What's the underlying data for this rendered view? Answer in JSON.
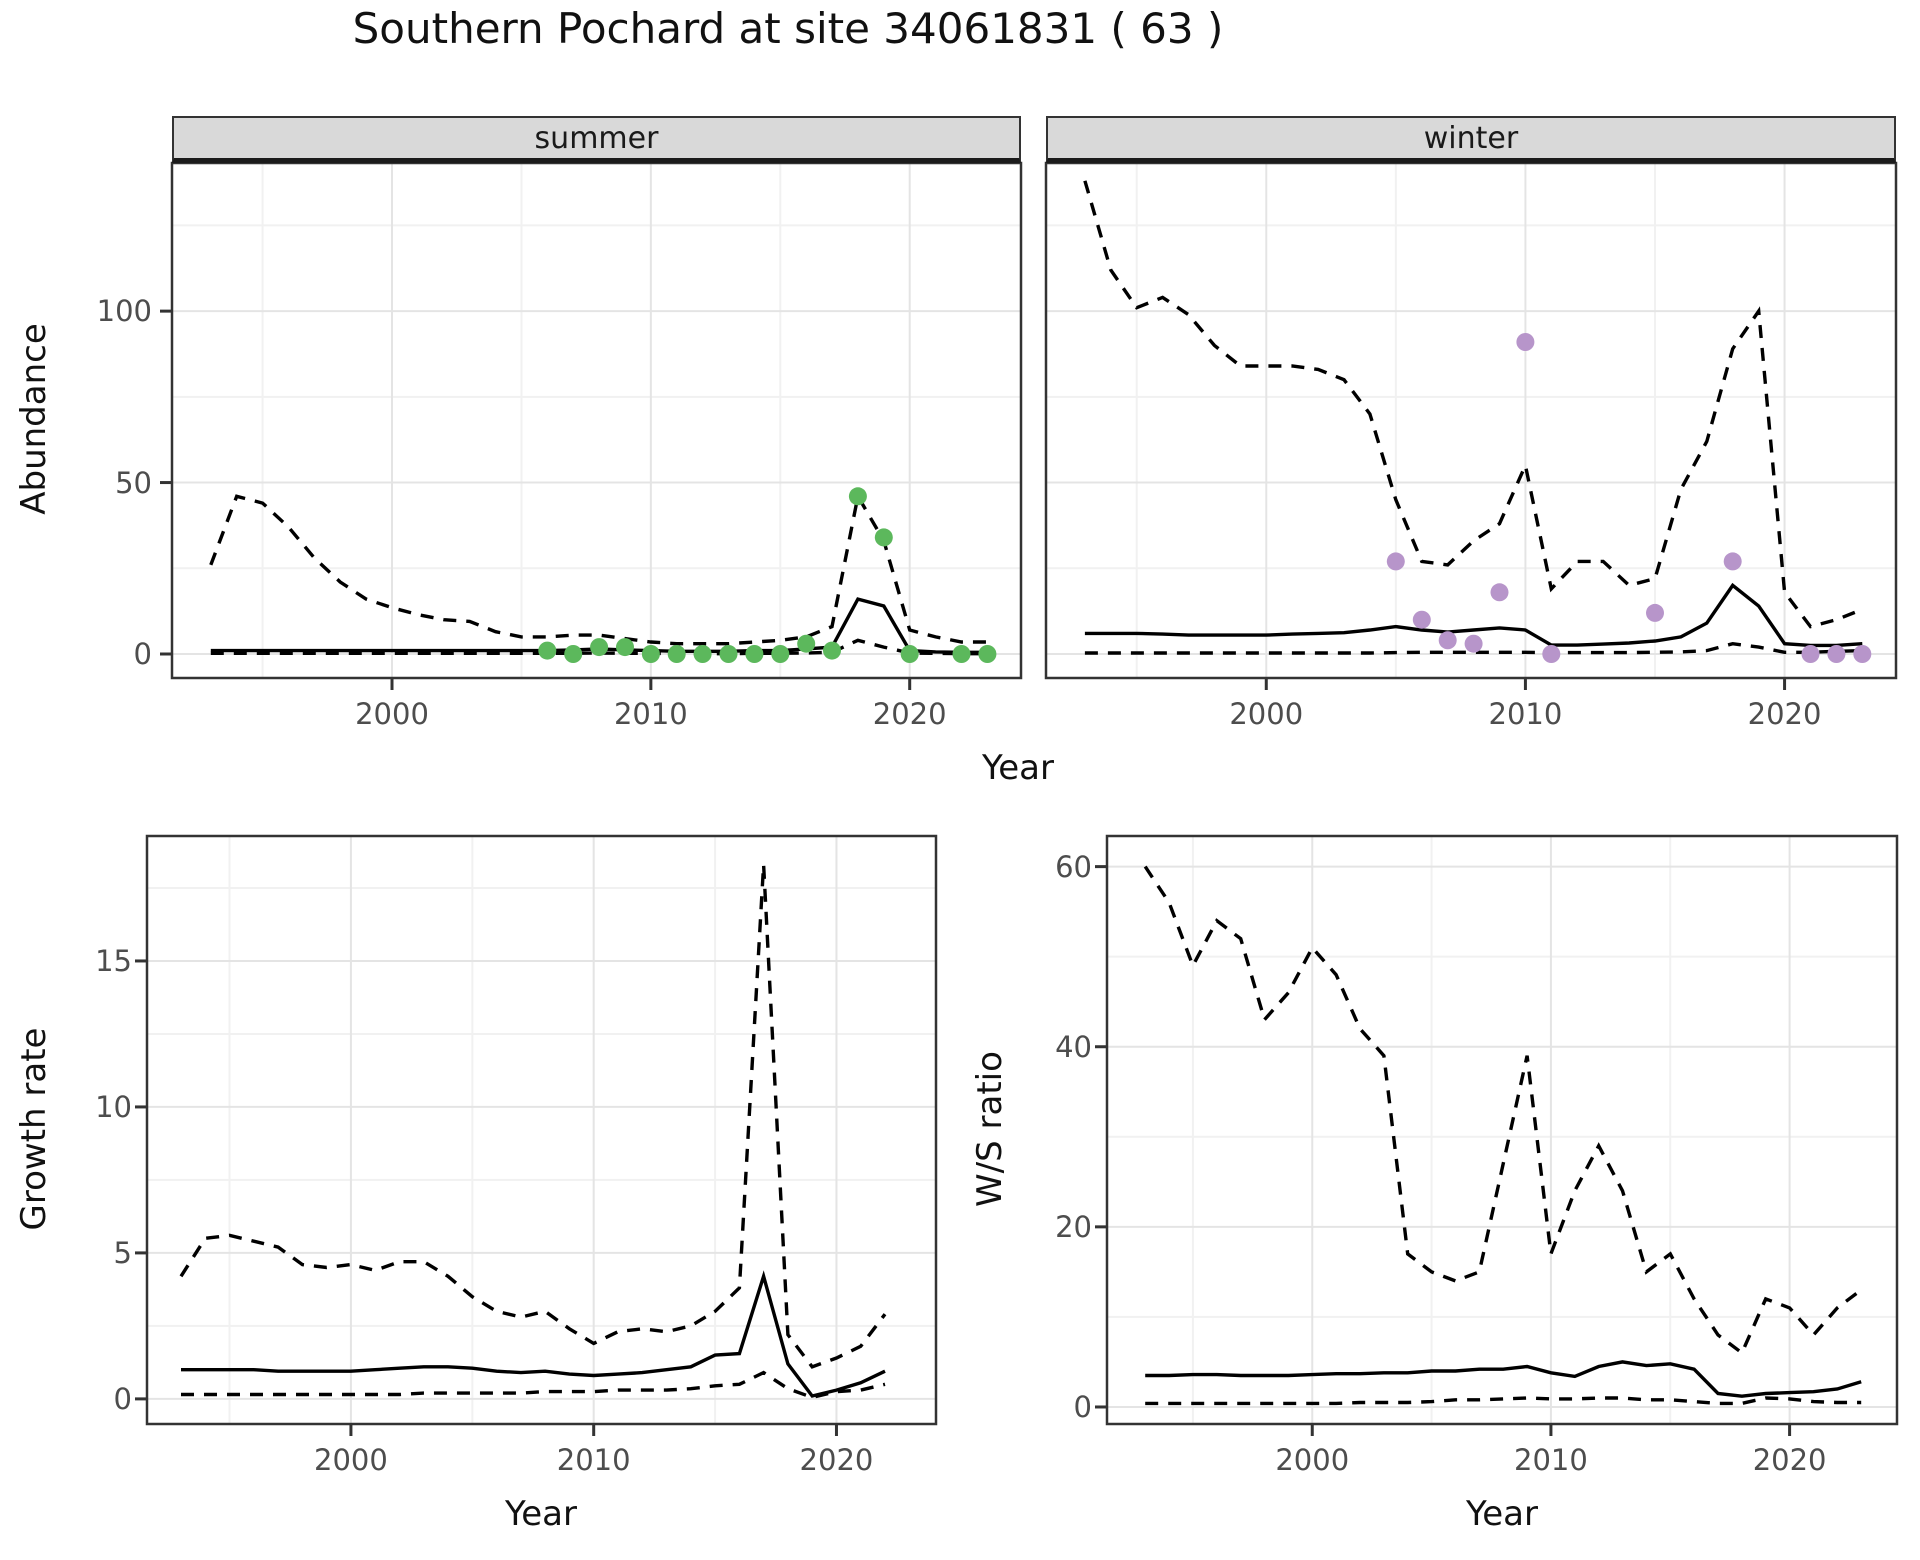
{
  "title": "Southern Pochard at site 34061831 ( 63 )",
  "facets": {
    "summer": "summer",
    "winter": "winter"
  },
  "axes": {
    "abundance_title": "Abundance",
    "year_top_title": "Year",
    "growth_title": "Growth rate",
    "ws_title": "W/S ratio",
    "year_bottom_left_title": "Year",
    "year_bottom_right_title": "Year"
  },
  "colors": {
    "summer_obs": "#5cb85c",
    "winter_obs": "#b795ca",
    "line": "#000000",
    "grid_major": "#e4e4e4",
    "grid_minor": "#f1f1f1",
    "panel_border": "#333333",
    "tick_mark": "#333333",
    "tick_text": "#4d4d4d",
    "strip_bg": "#d9d9d9"
  },
  "chart_data": [
    {
      "id": "summer-abundance",
      "type": "line",
      "facet": "summer",
      "title": "summer",
      "xlabel": "Year",
      "ylabel": "Abundance",
      "xlim": [
        1991.5,
        2024.3
      ],
      "ylim": [
        -7,
        143.2
      ],
      "x_ticks": [
        2000,
        2010,
        2020
      ],
      "x_tick_labels": [
        "2000",
        "2010",
        "2020"
      ],
      "x_minor": [
        1995,
        2005,
        2015
      ],
      "y_ticks": [
        0,
        50,
        100
      ],
      "y_tick_labels": [
        "0",
        "50",
        "100"
      ],
      "y_minor": [
        25,
        75,
        125
      ],
      "x": [
        1993,
        1994,
        1995,
        1996,
        1997,
        1998,
        1999,
        2000,
        2001,
        2002,
        2003,
        2004,
        2005,
        2006,
        2007,
        2008,
        2009,
        2010,
        2011,
        2012,
        2013,
        2014,
        2015,
        2016,
        2017,
        2018,
        2019,
        2020,
        2021,
        2022,
        2023
      ],
      "series": [
        {
          "name": "upper_ci",
          "style": "dashed",
          "values": [
            26,
            46,
            44,
            37,
            28,
            21,
            16,
            13.5,
            11.5,
            10,
            9.5,
            6.5,
            5,
            5,
            5.5,
            5.5,
            4.5,
            3.5,
            3,
            3,
            3,
            3.5,
            4,
            5,
            8,
            46,
            33,
            7,
            5,
            3.5,
            3.5
          ]
        },
        {
          "name": "mean",
          "style": "solid",
          "values": [
            1,
            1,
            1,
            1,
            1,
            1,
            1,
            1,
            1,
            1,
            1,
            1,
            1,
            1,
            1.2,
            1.5,
            1.2,
            1,
            0.8,
            0.8,
            0.8,
            1,
            1,
            1.5,
            2,
            16,
            14,
            1,
            0.6,
            0.5,
            0.5
          ]
        },
        {
          "name": "lower_ci",
          "style": "dashed",
          "values": [
            0.2,
            0.2,
            0.2,
            0.2,
            0.2,
            0.2,
            0.2,
            0.2,
            0.2,
            0.2,
            0.2,
            0.2,
            0.2,
            0.2,
            0.2,
            0.3,
            0.2,
            0.2,
            0.1,
            0.1,
            0.1,
            0.2,
            0.2,
            0.3,
            0.5,
            4,
            2,
            0.3,
            0.2,
            0.1,
            0.1
          ]
        }
      ],
      "points": {
        "name": "observed-summer",
        "color_key": "summer_obs",
        "data": [
          [
            2006,
            1
          ],
          [
            2007,
            0
          ],
          [
            2008,
            2
          ],
          [
            2009,
            2
          ],
          [
            2010,
            0
          ],
          [
            2011,
            0
          ],
          [
            2012,
            0
          ],
          [
            2013,
            0
          ],
          [
            2014,
            0
          ],
          [
            2015,
            0
          ],
          [
            2016,
            3
          ],
          [
            2017,
            1
          ],
          [
            2018,
            46
          ],
          [
            2019,
            34
          ],
          [
            2020,
            0
          ],
          [
            2022,
            0
          ],
          [
            2023,
            0
          ]
        ]
      }
    },
    {
      "id": "winter-abundance",
      "type": "line",
      "facet": "winter",
      "title": "winter",
      "xlabel": "Year",
      "ylabel": "Abundance",
      "xlim": [
        1991.5,
        2024.3
      ],
      "ylim": [
        -7,
        143.2
      ],
      "x_ticks": [
        2000,
        2010,
        2020
      ],
      "x_tick_labels": [
        "2000",
        "2010",
        "2020"
      ],
      "x_minor": [
        1995,
        2005,
        2015
      ],
      "y_ticks": [
        0,
        50,
        100
      ],
      "y_tick_labels": [],
      "y_minor": [
        25,
        75,
        125
      ],
      "x": [
        1993,
        1994,
        1995,
        1996,
        1997,
        1998,
        1999,
        2000,
        2001,
        2002,
        2003,
        2004,
        2005,
        2006,
        2007,
        2008,
        2009,
        2010,
        2011,
        2012,
        2013,
        2014,
        2015,
        2016,
        2017,
        2018,
        2019,
        2020,
        2021,
        2022,
        2023
      ],
      "series": [
        {
          "name": "upper_ci",
          "style": "dashed",
          "values": [
            138,
            112,
            101,
            104,
            99,
            90,
            84,
            84,
            84,
            83,
            80,
            70,
            45,
            27,
            26,
            33,
            38,
            55,
            19,
            27,
            27,
            20,
            22,
            48,
            62,
            89,
            100,
            18,
            8,
            10,
            13
          ]
        },
        {
          "name": "mean",
          "style": "solid",
          "values": [
            6,
            6,
            6,
            5.8,
            5.5,
            5.5,
            5.5,
            5.5,
            5.8,
            6,
            6.2,
            7,
            8,
            7,
            6.4,
            7,
            7.6,
            7,
            2.6,
            2.6,
            2.9,
            3.2,
            3.8,
            5,
            9,
            20,
            14,
            3,
            2.5,
            2.5,
            3
          ]
        },
        {
          "name": "lower_ci",
          "style": "dashed",
          "values": [
            0.3,
            0.3,
            0.3,
            0.3,
            0.3,
            0.3,
            0.3,
            0.3,
            0.3,
            0.3,
            0.3,
            0.3,
            0.4,
            0.5,
            0.5,
            0.5,
            0.5,
            0.5,
            0.4,
            0.4,
            0.4,
            0.4,
            0.5,
            0.6,
            1,
            3,
            2,
            0.5,
            0.5,
            0.8,
            1
          ]
        }
      ],
      "points": {
        "name": "observed-winter",
        "color_key": "winter_obs",
        "data": [
          [
            2005,
            27
          ],
          [
            2006,
            10
          ],
          [
            2007,
            4
          ],
          [
            2008,
            3
          ],
          [
            2009,
            18
          ],
          [
            2010,
            91
          ],
          [
            2011,
            0
          ],
          [
            2015,
            12
          ],
          [
            2018,
            27
          ],
          [
            2021,
            0
          ],
          [
            2022,
            0
          ],
          [
            2023,
            0
          ]
        ]
      }
    },
    {
      "id": "growth-rate",
      "type": "line",
      "facet": null,
      "title": "Growth rate",
      "xlabel": "Year",
      "ylabel": "Growth rate",
      "xlim": [
        1991.6,
        2024.1
      ],
      "ylim": [
        -0.86,
        19.28
      ],
      "x_ticks": [
        2000,
        2010,
        2020
      ],
      "x_tick_labels": [
        "2000",
        "2010",
        "2020"
      ],
      "x_minor": [
        1995,
        2005,
        2015
      ],
      "y_ticks": [
        0,
        5,
        10,
        15
      ],
      "y_tick_labels": [
        "0",
        "5",
        "10",
        "15"
      ],
      "y_minor": [
        2.5,
        7.5,
        12.5,
        17.5
      ],
      "x": [
        1993,
        1994,
        1995,
        1996,
        1997,
        1998,
        1999,
        2000,
        2001,
        2002,
        2003,
        2004,
        2005,
        2006,
        2007,
        2008,
        2009,
        2010,
        2011,
        2012,
        2013,
        2014,
        2015,
        2016,
        2017,
        2018,
        2019,
        2020,
        2021,
        2022
      ],
      "series": [
        {
          "name": "upper_ci",
          "style": "dashed",
          "values": [
            4.2,
            5.5,
            5.6,
            5.4,
            5.2,
            4.6,
            4.5,
            4.6,
            4.4,
            4.7,
            4.7,
            4.2,
            3.5,
            3.0,
            2.8,
            3.0,
            2.4,
            1.9,
            2.3,
            2.4,
            2.3,
            2.5,
            3.0,
            3.8,
            18.3,
            2.2,
            1.1,
            1.4,
            1.8,
            2.9
          ]
        },
        {
          "name": "mean",
          "style": "solid",
          "values": [
            1.0,
            1.0,
            1.0,
            1.0,
            0.95,
            0.95,
            0.95,
            0.95,
            1.0,
            1.05,
            1.1,
            1.1,
            1.05,
            0.95,
            0.9,
            0.95,
            0.85,
            0.8,
            0.85,
            0.9,
            1.0,
            1.1,
            1.5,
            1.55,
            4.2,
            1.2,
            0.1,
            0.3,
            0.55,
            0.95
          ]
        },
        {
          "name": "lower_ci",
          "style": "dashed",
          "values": [
            0.15,
            0.15,
            0.15,
            0.15,
            0.15,
            0.15,
            0.15,
            0.15,
            0.15,
            0.15,
            0.2,
            0.2,
            0.2,
            0.2,
            0.2,
            0.25,
            0.25,
            0.25,
            0.3,
            0.3,
            0.3,
            0.35,
            0.45,
            0.5,
            0.9,
            0.35,
            0.05,
            0.25,
            0.3,
            0.5
          ]
        }
      ],
      "points": null
    },
    {
      "id": "ws-ratio",
      "type": "line",
      "facet": null,
      "title": "W/S ratio",
      "xlabel": "Year",
      "ylabel": "W/S ratio",
      "xlim": [
        1991.4,
        2024.5
      ],
      "ylim": [
        -1.89,
        63.4
      ],
      "x_ticks": [
        2000,
        2010,
        2020
      ],
      "x_tick_labels": [
        "2000",
        "2010",
        "2020"
      ],
      "x_minor": [
        1995,
        2005,
        2015
      ],
      "y_ticks": [
        0,
        20,
        40,
        60
      ],
      "y_tick_labels": [
        "0",
        "20",
        "40",
        "60"
      ],
      "y_minor": [
        10,
        30,
        50
      ],
      "x": [
        1993,
        1994,
        1995,
        1996,
        1997,
        1998,
        1999,
        2000,
        2001,
        2002,
        2003,
        2004,
        2005,
        2006,
        2007,
        2008,
        2009,
        2010,
        2011,
        2012,
        2013,
        2014,
        2015,
        2016,
        2017,
        2018,
        2019,
        2020,
        2021,
        2022,
        2023
      ],
      "series": [
        {
          "name": "upper_ci",
          "style": "dashed",
          "values": [
            60,
            56,
            49,
            54,
            52,
            43,
            46,
            51,
            48,
            42,
            39,
            17,
            15,
            14,
            15,
            27,
            39,
            17,
            24,
            29,
            24,
            15,
            17,
            12,
            8,
            6,
            12,
            11,
            8,
            11,
            13
          ]
        },
        {
          "name": "mean",
          "style": "solid",
          "values": [
            3.5,
            3.5,
            3.6,
            3.6,
            3.5,
            3.5,
            3.5,
            3.6,
            3.7,
            3.7,
            3.8,
            3.8,
            4.0,
            4.0,
            4.2,
            4.2,
            4.5,
            3.8,
            3.4,
            4.5,
            5.0,
            4.6,
            4.8,
            4.2,
            1.5,
            1.2,
            1.5,
            1.6,
            1.7,
            2.0,
            2.8
          ]
        },
        {
          "name": "lower_ci",
          "style": "dashed",
          "values": [
            0.4,
            0.4,
            0.4,
            0.4,
            0.4,
            0.4,
            0.4,
            0.4,
            0.4,
            0.5,
            0.5,
            0.5,
            0.6,
            0.8,
            0.8,
            0.9,
            1.0,
            0.9,
            0.9,
            1.0,
            1.0,
            0.8,
            0.8,
            0.6,
            0.4,
            0.4,
            1.0,
            0.9,
            0.6,
            0.5,
            0.5
          ]
        }
      ],
      "points": null
    }
  ]
}
